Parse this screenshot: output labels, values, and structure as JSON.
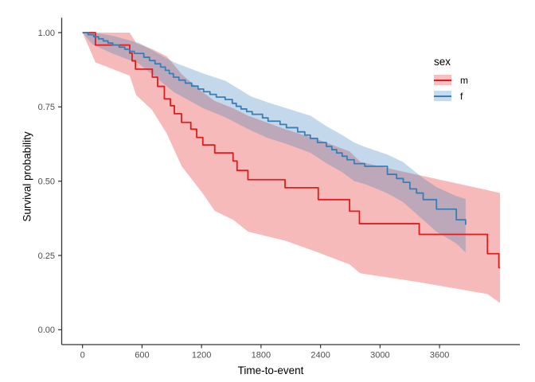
{
  "figure": {
    "y_axis_title": "Survival probability",
    "x_axis_title": "Time-to-event",
    "legend": {
      "title": "sex",
      "items": [
        {
          "label": "m",
          "color": "#E41A1C",
          "band_fill": "#F7BFBF"
        },
        {
          "label": "f",
          "color": "#377EB8",
          "band_fill": "#C7DBEB"
        }
      ]
    }
  },
  "chart_data": {
    "type": "line",
    "subtype": "kaplan-meier-step-curves-with-confidence-bands",
    "title": "",
    "xlabel": "Time-to-event",
    "ylabel": "Survival probability",
    "xlim": [
      -210,
      4410
    ],
    "ylim": [
      -0.05,
      1.05
    ],
    "grid": false,
    "legend_position": "right",
    "x_ticks": [
      0,
      600,
      1200,
      1800,
      2400,
      3000,
      3600
    ],
    "y_ticks": [
      {
        "v": 0.0,
        "label": "0.00"
      },
      {
        "v": 0.25,
        "label": "0.25"
      },
      {
        "v": 0.5,
        "label": "0.50"
      },
      {
        "v": 0.75,
        "label": "0.75"
      },
      {
        "v": 1.0,
        "label": "1.00"
      }
    ],
    "series": [
      {
        "name": "m",
        "color": "#E41A1C",
        "band_opacity": 0.3,
        "steps": [
          [
            0,
            1.0
          ],
          [
            130,
            0.958
          ],
          [
            476,
            0.931
          ],
          [
            500,
            0.905
          ],
          [
            534,
            0.877
          ],
          [
            704,
            0.85
          ],
          [
            757,
            0.819
          ],
          [
            825,
            0.777
          ],
          [
            886,
            0.754
          ],
          [
            926,
            0.727
          ],
          [
            998,
            0.698
          ],
          [
            1092,
            0.675
          ],
          [
            1151,
            0.647
          ],
          [
            1213,
            0.622
          ],
          [
            1333,
            0.595
          ],
          [
            1518,
            0.568
          ],
          [
            1558,
            0.536
          ],
          [
            1668,
            0.505
          ],
          [
            2042,
            0.478
          ],
          [
            2377,
            0.438
          ],
          [
            2693,
            0.399
          ],
          [
            2792,
            0.357
          ],
          [
            3395,
            0.321
          ],
          [
            4083,
            0.256
          ],
          [
            4198,
            0.209
          ],
          [
            4210,
            0.209
          ]
        ],
        "band": [
          [
            0,
            1.0,
            1.0
          ],
          [
            130,
            0.9,
            1.0
          ],
          [
            476,
            0.855,
            1.0
          ],
          [
            540,
            0.79,
            0.965
          ],
          [
            700,
            0.74,
            0.945
          ],
          [
            850,
            0.66,
            0.92
          ],
          [
            1000,
            0.55,
            0.86
          ],
          [
            1210,
            0.46,
            0.8
          ],
          [
            1333,
            0.4,
            0.77
          ],
          [
            1520,
            0.37,
            0.745
          ],
          [
            1670,
            0.33,
            0.72
          ],
          [
            2042,
            0.3,
            0.675
          ],
          [
            2377,
            0.26,
            0.64
          ],
          [
            2693,
            0.22,
            0.6
          ],
          [
            2800,
            0.19,
            0.565
          ],
          [
            3395,
            0.16,
            0.52
          ],
          [
            4083,
            0.12,
            0.47
          ],
          [
            4210,
            0.09,
            0.46
          ]
        ]
      },
      {
        "name": "f",
        "color": "#377EB8",
        "band_opacity": 0.3,
        "steps": [
          [
            0,
            1.0
          ],
          [
            56,
            0.993
          ],
          [
            112,
            0.986
          ],
          [
            161,
            0.979
          ],
          [
            209,
            0.972
          ],
          [
            257,
            0.965
          ],
          [
            305,
            0.958
          ],
          [
            369,
            0.951
          ],
          [
            426,
            0.944
          ],
          [
            474,
            0.937
          ],
          [
            522,
            0.93
          ],
          [
            618,
            0.917
          ],
          [
            675,
            0.906
          ],
          [
            731,
            0.895
          ],
          [
            787,
            0.884
          ],
          [
            835,
            0.873
          ],
          [
            875,
            0.862
          ],
          [
            916,
            0.85
          ],
          [
            972,
            0.84
          ],
          [
            1036,
            0.83
          ],
          [
            1100,
            0.82
          ],
          [
            1165,
            0.81
          ],
          [
            1221,
            0.801
          ],
          [
            1285,
            0.792
          ],
          [
            1349,
            0.783
          ],
          [
            1438,
            0.775
          ],
          [
            1510,
            0.762
          ],
          [
            1550,
            0.752
          ],
          [
            1598,
            0.743
          ],
          [
            1655,
            0.734
          ],
          [
            1711,
            0.725
          ],
          [
            1815,
            0.713
          ],
          [
            1871,
            0.702
          ],
          [
            1992,
            0.691
          ],
          [
            2056,
            0.68
          ],
          [
            2169,
            0.666
          ],
          [
            2241,
            0.655
          ],
          [
            2297,
            0.644
          ],
          [
            2369,
            0.63
          ],
          [
            2458,
            0.617
          ],
          [
            2514,
            0.606
          ],
          [
            2562,
            0.595
          ],
          [
            2618,
            0.584
          ],
          [
            2667,
            0.572
          ],
          [
            2739,
            0.559
          ],
          [
            2846,
            0.55
          ],
          [
            3074,
            0.523
          ],
          [
            3167,
            0.509
          ],
          [
            3234,
            0.496
          ],
          [
            3301,
            0.474
          ],
          [
            3368,
            0.46
          ],
          [
            3435,
            0.438
          ],
          [
            3569,
            0.406
          ],
          [
            3769,
            0.37
          ],
          [
            3863,
            0.353
          ]
        ],
        "band": [
          [
            0,
            1.0,
            1.0
          ],
          [
            100,
            0.96,
            1.0
          ],
          [
            300,
            0.93,
            0.99
          ],
          [
            570,
            0.895,
            0.965
          ],
          [
            920,
            0.8,
            0.9
          ],
          [
            1220,
            0.745,
            0.862
          ],
          [
            1440,
            0.715,
            0.838
          ],
          [
            1700,
            0.67,
            0.785
          ],
          [
            1870,
            0.645,
            0.765
          ],
          [
            2060,
            0.625,
            0.745
          ],
          [
            2300,
            0.595,
            0.72
          ],
          [
            2460,
            0.56,
            0.685
          ],
          [
            2620,
            0.53,
            0.655
          ],
          [
            2740,
            0.5,
            0.63
          ],
          [
            2850,
            0.49,
            0.615
          ],
          [
            3070,
            0.46,
            0.59
          ],
          [
            3230,
            0.43,
            0.565
          ],
          [
            3435,
            0.37,
            0.51
          ],
          [
            3569,
            0.33,
            0.48
          ],
          [
            3769,
            0.29,
            0.45
          ],
          [
            3863,
            0.26,
            0.44
          ]
        ]
      }
    ],
    "axis_color": "#333333",
    "tick_label_color": "#4d4d4d"
  }
}
